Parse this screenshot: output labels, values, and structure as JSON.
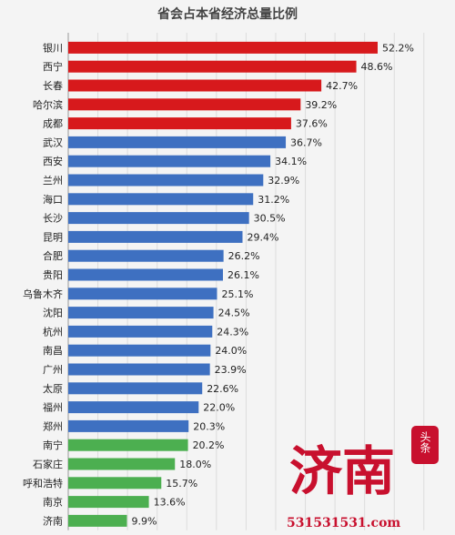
{
  "chart_data": {
    "type": "bar",
    "orientation": "horizontal",
    "title": "省会占本省经济总量比例",
    "categories": [
      "银川",
      "西宁",
      "长春",
      "哈尔滨",
      "成都",
      "武汉",
      "西安",
      "兰州",
      "海口",
      "长沙",
      "昆明",
      "合肥",
      "贵阳",
      "乌鲁木齐",
      "沈阳",
      "杭州",
      "南昌",
      "广州",
      "太原",
      "福州",
      "郑州",
      "南宁",
      "石家庄",
      "呼和浩特",
      "南京",
      "济南"
    ],
    "values": [
      52.2,
      48.6,
      42.7,
      39.2,
      37.6,
      36.7,
      34.1,
      32.9,
      31.2,
      30.5,
      29.4,
      26.2,
      26.1,
      25.1,
      24.5,
      24.3,
      24.0,
      23.9,
      22.6,
      22.0,
      20.3,
      20.2,
      18.0,
      15.7,
      13.6,
      9.9
    ],
    "value_labels": [
      "52.2%",
      "48.6%",
      "42.7%",
      "39.2%",
      "37.6%",
      "36.7%",
      "34.1%",
      "32.9%",
      "31.2%",
      "30.5%",
      "29.4%",
      "26.2%",
      "26.1%",
      "25.1%",
      "24.5%",
      "24.3%",
      "24.0%",
      "23.9%",
      "22.6%",
      "22.0%",
      "20.3%",
      "20.2%",
      "18.0%",
      "15.7%",
      "13.6%",
      "9.9%"
    ],
    "bar_colors": [
      "#d7191c",
      "#d7191c",
      "#d7191c",
      "#d7191c",
      "#d7191c",
      "#3e70c1",
      "#3e70c1",
      "#3e70c1",
      "#3e70c1",
      "#3e70c1",
      "#3e70c1",
      "#3e70c1",
      "#3e70c1",
      "#3e70c1",
      "#3e70c1",
      "#3e70c1",
      "#3e70c1",
      "#3e70c1",
      "#3e70c1",
      "#3e70c1",
      "#3e70c1",
      "#4caf50",
      "#4caf50",
      "#4caf50",
      "#4caf50",
      "#4caf50"
    ],
    "grid": true,
    "xlim": [
      0,
      60
    ]
  },
  "watermark": {
    "logo_text": "济南",
    "badge_text": "头条",
    "site_text": "531531531.com"
  }
}
